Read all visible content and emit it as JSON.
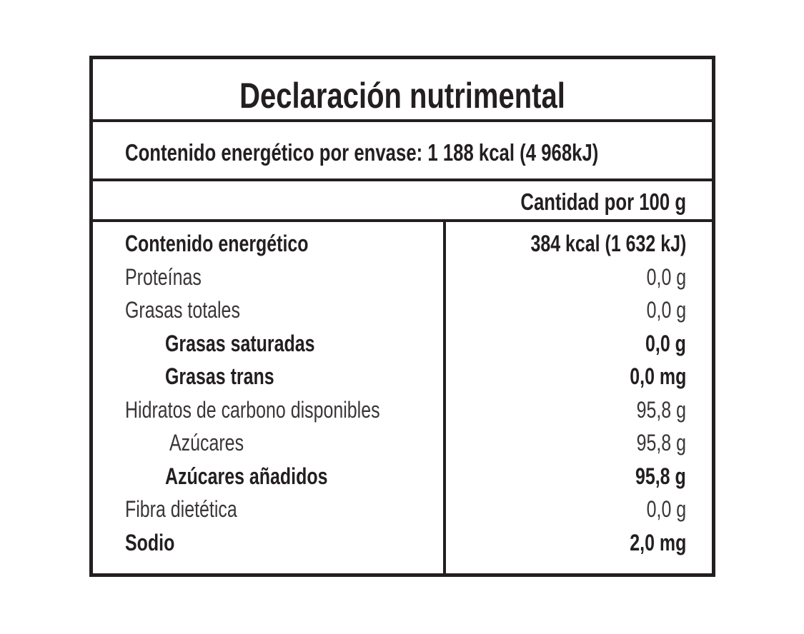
{
  "title": "Declaración nutrimental",
  "energy_per_package": "Contenido energético por envase: 1 188 kcal (4 968kJ)",
  "column_header": "Cantidad por 100 g",
  "rows": [
    {
      "label": "Contenido energético",
      "value": "384 kcal (1 632 kJ)",
      "bold": true,
      "indent": 0
    },
    {
      "label": "Proteínas",
      "value": "0,0 g",
      "bold": false,
      "indent": 0
    },
    {
      "label": "Grasas totales",
      "value": "0,0 g",
      "bold": false,
      "indent": 0
    },
    {
      "label": "Grasas saturadas",
      "value": "0,0 g",
      "bold": true,
      "indent": 2
    },
    {
      "label": "Grasas trans",
      "value": "0,0 mg",
      "bold": true,
      "indent": 2
    },
    {
      "label": "Hidratos de carbono disponibles",
      "value": "95,8 g",
      "bold": false,
      "indent": 0
    },
    {
      "label": "Azúcares",
      "value": "95,8 g",
      "bold": false,
      "indent": 1
    },
    {
      "label": "Azúcares añadidos",
      "value": "95,8 g",
      "bold": true,
      "indent": 2
    },
    {
      "label": "Fibra dietética",
      "value": "0,0 g",
      "bold": false,
      "indent": 0
    },
    {
      "label": "Sodio",
      "value": "2,0 mg",
      "bold": true,
      "indent": 0
    }
  ]
}
